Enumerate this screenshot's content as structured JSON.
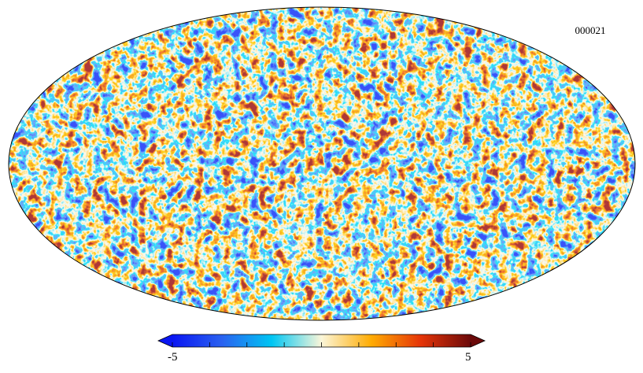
{
  "map_label": "000021",
  "colorbar": {
    "min_label": "-5",
    "max_label": "5",
    "range": [
      -5,
      5
    ],
    "colors": [
      "#0a16f2",
      "#2a62f0",
      "#00c6f3",
      "#fbf6d9",
      "#ffac03",
      "#e53408",
      "#6b0a0a"
    ]
  }
}
